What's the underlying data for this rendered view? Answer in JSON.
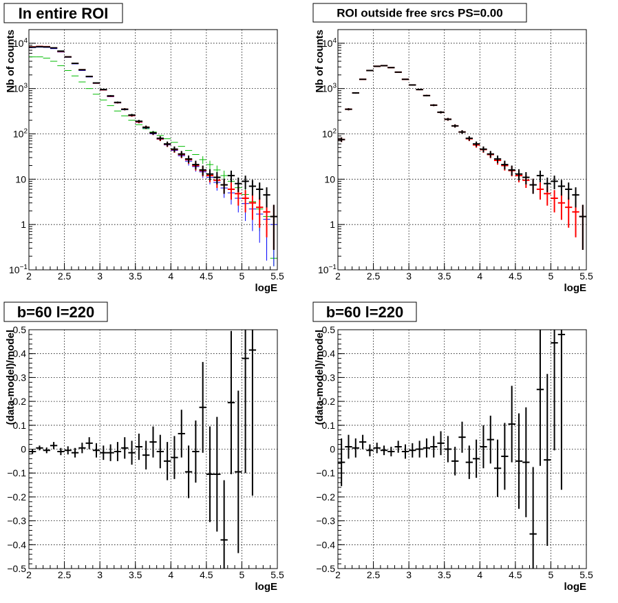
{
  "colors": {
    "data": "#000000",
    "model": "#ff0000",
    "blue_series": "#0000ff",
    "green_series": "#00bb00",
    "grid": "#000000",
    "frame": "#000000"
  },
  "chart_data": [
    {
      "type": "scatter",
      "title": "In entire ROI",
      "xlabel": "logE",
      "ylabel": "Nb of counts",
      "xlim": [
        2,
        5.5
      ],
      "ylim": [
        0.1,
        20000
      ],
      "yscale": "log",
      "grid": true,
      "x_ticks": [
        "2",
        "2.5",
        "3",
        "3.5",
        "4",
        "4.5",
        "5",
        "5.5"
      ],
      "y_ticks": [
        {
          "v": 0.1,
          "base": "10",
          "exp": "−1"
        },
        {
          "v": 1,
          "label": "1"
        },
        {
          "v": 10,
          "label": "10"
        },
        {
          "v": 100,
          "base": "10",
          "exp": "2"
        },
        {
          "v": 1000,
          "base": "10",
          "exp": "3"
        },
        {
          "v": 10000,
          "base": "10",
          "exp": "4"
        }
      ],
      "x": [
        2.05,
        2.15,
        2.25,
        2.35,
        2.45,
        2.55,
        2.65,
        2.75,
        2.85,
        2.95,
        3.05,
        3.15,
        3.25,
        3.35,
        3.45,
        3.55,
        3.65,
        3.75,
        3.85,
        3.95,
        4.05,
        4.15,
        4.25,
        4.35,
        4.45,
        4.55,
        4.65,
        4.75,
        4.85,
        4.95,
        5.05,
        5.15,
        5.25,
        5.35,
        5.45
      ],
      "series": [
        {
          "color": "#00bb00",
          "errors": false,
          "values": [
            5000,
            5000,
            4700,
            4000,
            3200,
            2500,
            1900,
            1400,
            1000,
            750,
            560,
            420,
            320,
            250,
            200,
            160,
            130,
            110,
            92,
            78,
            65,
            53,
            43,
            35,
            27,
            21,
            16,
            12,
            9,
            6.5,
            4.6,
            3.2,
            2.2,
            1.5,
            0.18
          ]
        },
        {
          "color": "#0000ff",
          "errors": false,
          "values": [
            8000,
            8200,
            8100,
            7600,
            6400,
            4900,
            3500,
            2500,
            1800,
            1300,
            920,
            660,
            480,
            340,
            250,
            180,
            135,
            100,
            76,
            57,
            43,
            33,
            25,
            19,
            14.5,
            11,
            8.5,
            6.4,
            5,
            3.8,
            2.9,
            2.2,
            1.7,
            1.3,
            1
          ]
        },
        {
          "color": "#ff0000",
          "errors": true,
          "values": [
            8300,
            8500,
            8400,
            7900,
            6600,
            5000,
            3600,
            2600,
            1850,
            1320,
            940,
            680,
            490,
            350,
            255,
            185,
            140,
            104,
            78,
            59,
            45,
            35,
            27,
            20,
            15.5,
            12,
            9.5,
            7.5,
            6,
            4.8,
            3.8,
            3,
            2.4,
            1.9,
            1.5
          ]
        },
        {
          "color": "#000000",
          "errors": true,
          "values": [
            8200,
            8400,
            8300,
            7900,
            6700,
            5000,
            3600,
            2600,
            1850,
            1330,
            950,
            690,
            495,
            350,
            260,
            190,
            140,
            105,
            80,
            60,
            46,
            36,
            28,
            21,
            16,
            13,
            11,
            7.5,
            12,
            8,
            9,
            7,
            6,
            4.5,
            1.5
          ]
        }
      ]
    },
    {
      "type": "scatter",
      "title": "ROI outside free srcs PS=0.00",
      "xlabel": "logE",
      "ylabel": "Nb of counts",
      "xlim": [
        2,
        5.5
      ],
      "ylim": [
        0.1,
        20000
      ],
      "yscale": "log",
      "grid": true,
      "x_ticks": [
        "2",
        "2.5",
        "3",
        "3.5",
        "4",
        "4.5",
        "5",
        "5.5"
      ],
      "y_ticks": [
        {
          "v": 0.1,
          "base": "10",
          "exp": "−1"
        },
        {
          "v": 1,
          "label": "1"
        },
        {
          "v": 10,
          "label": "10"
        },
        {
          "v": 100,
          "base": "10",
          "exp": "2"
        },
        {
          "v": 1000,
          "base": "10",
          "exp": "3"
        },
        {
          "v": 10000,
          "base": "10",
          "exp": "4"
        }
      ],
      "x": [
        2.05,
        2.15,
        2.25,
        2.35,
        2.45,
        2.55,
        2.65,
        2.75,
        2.85,
        2.95,
        3.05,
        3.15,
        3.25,
        3.35,
        3.45,
        3.55,
        3.65,
        3.75,
        3.85,
        3.95,
        4.05,
        4.15,
        4.25,
        4.35,
        4.45,
        4.55,
        4.65,
        4.75,
        4.85,
        4.95,
        5.05,
        5.15,
        5.25,
        5.35,
        5.45
      ],
      "series": [
        {
          "color": "#ff0000",
          "errors": true,
          "values": [
            75,
            350,
            800,
            1600,
            2500,
            3100,
            3200,
            2900,
            2300,
            1600,
            1200,
            950,
            700,
            430,
            300,
            210,
            150,
            110,
            78,
            57,
            45,
            35,
            26,
            20,
            15.5,
            12,
            9.5,
            7.5,
            6,
            4.8,
            3.8,
            3,
            2.4,
            1.9,
            1.5
          ]
        },
        {
          "color": "#000000",
          "errors": true,
          "values": [
            75,
            350,
            800,
            1600,
            2500,
            3100,
            3200,
            2900,
            2300,
            1600,
            1200,
            950,
            700,
            430,
            300,
            210,
            150,
            110,
            80,
            60,
            46,
            36,
            28,
            21,
            16,
            13,
            11,
            7.5,
            12,
            8,
            9,
            7,
            6,
            4.5,
            1.5
          ]
        }
      ]
    },
    {
      "type": "scatter",
      "title": "b=60 l=220",
      "xlabel": "logE",
      "ylabel": "(data-model)/model",
      "xlim": [
        2,
        5.5
      ],
      "ylim": [
        -0.5,
        0.5
      ],
      "grid": true,
      "x_ticks": [
        "2",
        "2.5",
        "3",
        "3.5",
        "4",
        "4.5",
        "5",
        "5.5"
      ],
      "y_ticks": [
        {
          "v": -0.5,
          "label": "−0.5"
        },
        {
          "v": -0.4,
          "label": "−0.4"
        },
        {
          "v": -0.3,
          "label": "−0.3"
        },
        {
          "v": -0.2,
          "label": "−0.2"
        },
        {
          "v": -0.1,
          "label": "−0.1"
        },
        {
          "v": 0,
          "label": "0"
        },
        {
          "v": 0.1,
          "label": "0.1"
        },
        {
          "v": 0.2,
          "label": "0.2"
        },
        {
          "v": 0.3,
          "label": "0.3"
        },
        {
          "v": 0.4,
          "label": "0.4"
        },
        {
          "v": 0.5,
          "label": "0.5"
        }
      ],
      "x": [
        2.05,
        2.15,
        2.25,
        2.35,
        2.45,
        2.55,
        2.65,
        2.75,
        2.85,
        2.95,
        3.05,
        3.15,
        3.25,
        3.35,
        3.45,
        3.55,
        3.65,
        3.75,
        3.85,
        3.95,
        4.05,
        4.15,
        4.25,
        4.35,
        4.45,
        4.55,
        4.65,
        4.75,
        4.85,
        4.95,
        5.05,
        5.15
      ],
      "values": [
        -0.01,
        0.005,
        -0.005,
        0.015,
        -0.01,
        -0.005,
        -0.015,
        0.005,
        0.025,
        -0.005,
        -0.015,
        -0.015,
        -0.01,
        0.005,
        -0.015,
        0.01,
        -0.025,
        0.03,
        -0.01,
        -0.05,
        -0.035,
        0.065,
        -0.095,
        -0.01,
        0.175,
        -0.105,
        -0.105,
        -0.38,
        0.195,
        -0.095,
        0.38,
        0.415
      ],
      "errors": [
        0.01,
        0.01,
        0.012,
        0.015,
        0.015,
        0.017,
        0.02,
        0.022,
        0.025,
        0.03,
        0.03,
        0.035,
        0.04,
        0.045,
        0.05,
        0.055,
        0.06,
        0.065,
        0.07,
        0.08,
        0.09,
        0.1,
        0.11,
        0.13,
        0.19,
        0.2,
        0.24,
        0.25,
        0.3,
        0.34,
        0.48,
        0.61
      ]
    },
    {
      "type": "scatter",
      "title": "b=60 l=220",
      "xlabel": "logE",
      "ylabel": "(data-model)/model",
      "xlim": [
        2,
        5.5
      ],
      "ylim": [
        -0.5,
        0.5
      ],
      "grid": true,
      "x_ticks": [
        "2",
        "2.5",
        "3",
        "3.5",
        "4",
        "4.5",
        "5",
        "5.5"
      ],
      "y_ticks": [
        {
          "v": -0.5,
          "label": "−0.5"
        },
        {
          "v": -0.4,
          "label": "−0.4"
        },
        {
          "v": -0.3,
          "label": "−0.3"
        },
        {
          "v": -0.2,
          "label": "−0.2"
        },
        {
          "v": -0.1,
          "label": "−0.1"
        },
        {
          "v": 0,
          "label": "0"
        },
        {
          "v": 0.1,
          "label": "0.1"
        },
        {
          "v": 0.2,
          "label": "0.2"
        },
        {
          "v": 0.3,
          "label": "0.3"
        },
        {
          "v": 0.4,
          "label": "0.4"
        },
        {
          "v": 0.5,
          "label": "0.5"
        }
      ],
      "x": [
        2.05,
        2.15,
        2.25,
        2.35,
        2.45,
        2.55,
        2.65,
        2.75,
        2.85,
        2.95,
        3.05,
        3.15,
        3.25,
        3.35,
        3.45,
        3.55,
        3.65,
        3.75,
        3.85,
        3.95,
        4.05,
        4.15,
        4.25,
        4.35,
        4.45,
        4.55,
        4.65,
        4.75,
        4.85,
        4.95,
        5.05,
        5.15
      ],
      "values": [
        -0.055,
        0.01,
        0.005,
        0.03,
        -0.005,
        0.005,
        -0.005,
        -0.01,
        0.01,
        -0.01,
        -0.005,
        0.0,
        0.005,
        0.01,
        0.025,
        0.0,
        -0.05,
        0.05,
        -0.055,
        -0.04,
        0.01,
        0.04,
        -0.08,
        -0.03,
        0.105,
        -0.05,
        -0.055,
        -0.355,
        0.25,
        -0.045,
        0.445,
        0.48
      ],
      "errors": [
        0.1,
        0.05,
        0.04,
        0.03,
        0.025,
        0.022,
        0.02,
        0.02,
        0.025,
        0.03,
        0.03,
        0.035,
        0.04,
        0.045,
        0.05,
        0.055,
        0.06,
        0.065,
        0.07,
        0.08,
        0.09,
        0.1,
        0.12,
        0.14,
        0.16,
        0.2,
        0.23,
        0.28,
        0.32,
        0.36,
        0.45,
        0.65
      ]
    }
  ]
}
